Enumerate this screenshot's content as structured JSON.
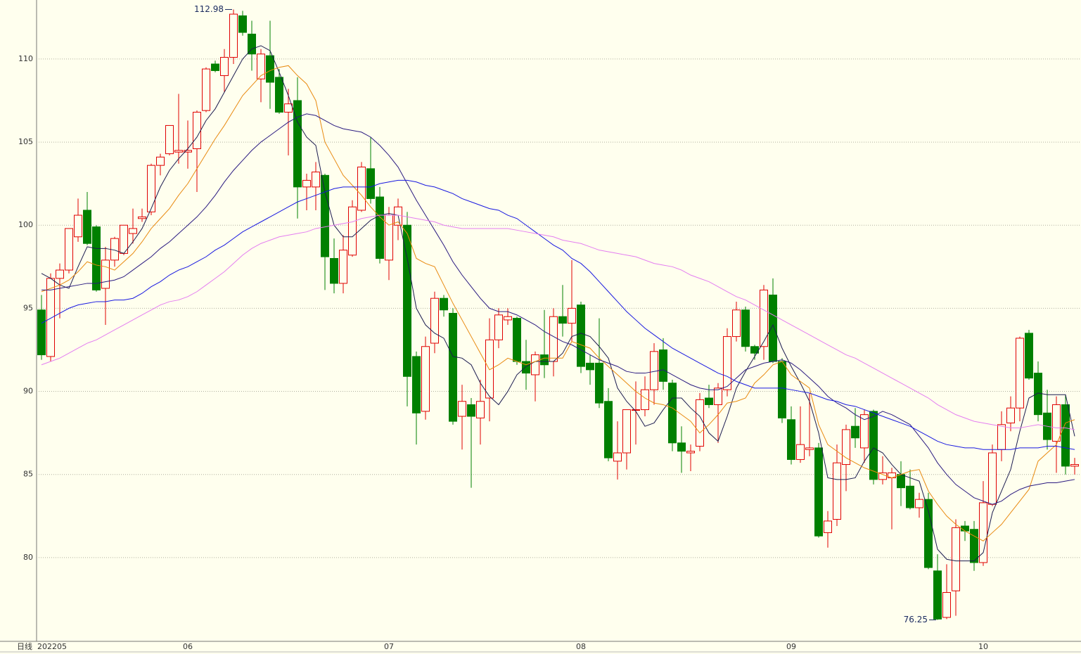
{
  "chart_data": {
    "type": "candlestick",
    "period_label": "日线",
    "categories": [
      "202205",
      null,
      null,
      null,
      null,
      null,
      null,
      null,
      null,
      null,
      null,
      null,
      null,
      null,
      null,
      null,
      "06",
      null,
      null,
      null,
      null,
      null,
      null,
      null,
      null,
      null,
      null,
      null,
      null,
      null,
      null,
      null,
      null,
      null,
      null,
      null,
      null,
      null,
      "07",
      null,
      null,
      null,
      null,
      null,
      null,
      null,
      null,
      null,
      null,
      null,
      null,
      null,
      null,
      null,
      null,
      null,
      null,
      null,
      null,
      "08",
      null,
      null,
      null,
      null,
      null,
      null,
      null,
      null,
      null,
      null,
      null,
      null,
      null,
      null,
      null,
      null,
      null,
      null,
      null,
      null,
      null,
      null,
      "09",
      null,
      null,
      null,
      null,
      null,
      null,
      null,
      null,
      null,
      null,
      null,
      null,
      null,
      null,
      null,
      null,
      null,
      null,
      null,
      null,
      "10",
      null,
      null,
      null,
      null,
      null,
      null,
      null,
      null,
      null,
      null
    ],
    "open": [
      94.9,
      92.1,
      96.8,
      97.3,
      99.3,
      100.9,
      99.9,
      96.2,
      97.9,
      98.3,
      99.5,
      100.4,
      100.8,
      103.6,
      104.3,
      104.4,
      104.4,
      104.6,
      106.9,
      109.7,
      109.0,
      110.1,
      112.6,
      111.5,
      108.8,
      110.2,
      108.9,
      106.8,
      107.5,
      102.3,
      102.3,
      103.0,
      98.0,
      96.5,
      98.2,
      100.9,
      103.4,
      101.7,
      97.9,
      100.0,
      100.0,
      92.1,
      88.8,
      92.9,
      95.6,
      94.7,
      88.5,
      89.2,
      88.4,
      89.6,
      93.1,
      94.3,
      94.4,
      91.8,
      91.0,
      92.2,
      91.8,
      94.5,
      94.1,
      95.2,
      91.7,
      91.7,
      89.4,
      85.8,
      86.3,
      88.9,
      88.9,
      90.1,
      92.5,
      90.5,
      86.9,
      86.3,
      86.7,
      89.6,
      89.2,
      90.1,
      93.3,
      94.9,
      92.7,
      92.7,
      95.8,
      91.8,
      88.3,
      85.9,
      86.5,
      86.6,
      81.5,
      82.3,
      85.6,
      87.9,
      86.6,
      88.8,
      84.7,
      84.8,
      85.0,
      84.3,
      83.0,
      83.5,
      79.2,
      76.4,
      78.0,
      81.9,
      81.7,
      79.7,
      83.2,
      86.5,
      88.1,
      89.0,
      93.5,
      91.1,
      88.7,
      87.0,
      89.2,
      85.5
    ],
    "high": [
      95.8,
      97.1,
      97.7,
      99.8,
      101.6,
      102.0,
      100.0,
      98.7,
      99.3,
      100.0,
      101.0,
      101.0,
      103.7,
      104.3,
      106.0,
      107.9,
      106.3,
      106.9,
      109.5,
      109.9,
      110.6,
      112.98,
      112.9,
      112.3,
      110.6,
      112.3,
      109.4,
      108.2,
      108.9,
      103.1,
      103.8,
      103.1,
      99.2,
      99.4,
      101.5,
      103.8,
      105.3,
      102.3,
      101.1,
      101.6,
      100.8,
      92.4,
      93.3,
      96.0,
      95.8,
      95.0,
      90.4,
      89.6,
      90.7,
      94.4,
      95.0,
      95.0,
      94.5,
      93.1,
      92.4,
      94.9,
      95.0,
      96.4,
      97.9,
      95.4,
      92.2,
      94.4,
      90.2,
      88.2,
      88.9,
      90.6,
      90.9,
      92.9,
      93.2,
      90.7,
      87.9,
      86.8,
      89.9,
      90.4,
      90.5,
      93.8,
      95.4,
      95.1,
      92.8,
      96.4,
      96.8,
      92.0,
      89.1,
      89.1,
      89.9,
      86.9,
      82.8,
      86.8,
      88.0,
      89.0,
      88.9,
      88.9,
      86.1,
      85.4,
      85.8,
      85.3,
      83.9,
      83.9,
      80.2,
      79.6,
      82.3,
      82.2,
      82.2,
      84.6,
      86.8,
      88.8,
      89.7,
      93.3,
      93.7,
      91.8,
      90.1,
      89.7,
      89.8,
      86.0
    ],
    "low": [
      91.9,
      91.8,
      94.4,
      97.1,
      99.0,
      98.8,
      96.0,
      94.0,
      97.5,
      98.2,
      98.9,
      100.2,
      100.6,
      103.0,
      104.2,
      103.7,
      103.4,
      102.0,
      106.8,
      109.2,
      108.0,
      109.7,
      111.4,
      109.3,
      107.4,
      107.0,
      106.7,
      104.2,
      100.4,
      100.9,
      100.9,
      96.1,
      95.9,
      95.9,
      98.1,
      100.8,
      101.3,
      97.7,
      96.7,
      99.1,
      89.1,
      86.8,
      88.3,
      92.3,
      94.5,
      88.0,
      86.5,
      84.2,
      86.8,
      88.2,
      92.6,
      94.0,
      91.6,
      90.1,
      89.4,
      90.8,
      90.9,
      93.3,
      93.0,
      91.1,
      90.4,
      89.0,
      85.8,
      84.7,
      85.3,
      86.8,
      88.5,
      89.2,
      90.1,
      86.4,
      85.1,
      85.2,
      86.4,
      89.0,
      86.9,
      89.7,
      93.0,
      92.4,
      91.9,
      91.9,
      91.7,
      88.1,
      85.6,
      85.7,
      86.1,
      81.2,
      80.6,
      81.9,
      84.0,
      86.6,
      85.7,
      84.4,
      84.4,
      81.7,
      83.1,
      82.9,
      82.4,
      79.3,
      76.25,
      76.3,
      76.5,
      81.0,
      79.2,
      79.5,
      83.1,
      85.8,
      87.6,
      88.2,
      90.7,
      88.2,
      86.5,
      85.1,
      85.0,
      85.0
    ],
    "close": [
      92.2,
      96.8,
      97.3,
      99.8,
      100.6,
      98.9,
      96.1,
      97.9,
      99.2,
      100.0,
      99.8,
      100.5,
      103.6,
      104.1,
      106.0,
      104.5,
      104.5,
      106.8,
      109.4,
      109.3,
      110.1,
      112.7,
      111.6,
      110.3,
      110.3,
      108.6,
      106.8,
      107.3,
      102.3,
      102.7,
      103.2,
      98.1,
      96.5,
      98.5,
      101.1,
      103.5,
      101.6,
      98.0,
      100.6,
      101.1,
      90.9,
      88.7,
      92.7,
      95.6,
      94.9,
      88.2,
      89.4,
      88.5,
      89.4,
      93.1,
      94.6,
      94.5,
      91.8,
      91.1,
      92.2,
      91.6,
      94.5,
      94.1,
      95.0,
      91.5,
      91.3,
      89.3,
      86.0,
      86.3,
      88.9,
      88.9,
      90.1,
      92.4,
      90.6,
      86.9,
      86.4,
      86.4,
      89.5,
      89.2,
      90.2,
      93.3,
      94.9,
      92.7,
      92.3,
      96.1,
      91.8,
      88.4,
      85.9,
      86.8,
      86.6,
      81.3,
      82.2,
      85.7,
      87.7,
      87.2,
      88.6,
      84.7,
      85.1,
      85.1,
      84.2,
      83.0,
      83.5,
      79.4,
      76.3,
      77.9,
      81.8,
      81.6,
      79.7,
      83.3,
      86.3,
      88.0,
      89.0,
      93.2,
      90.8,
      88.6,
      87.1,
      89.2,
      85.5,
      85.6
    ],
    "up_color": "#e00000",
    "down_color": "#008000",
    "lines": [
      {
        "color": "#1c1c50",
        "values": [
          97.1,
          96.8,
          96.4,
          96.2,
          97.5,
          98.7,
          98.6,
          98.6,
          98.5,
          98.3,
          99.0,
          99.8,
          101.0,
          102.3,
          103.3,
          104.0,
          104.6,
          105.3,
          106.3,
          107.0,
          108.0,
          109.0,
          110.0,
          110.6,
          110.8,
          110.5,
          109.2,
          107.8,
          106.2,
          105.3,
          104.8,
          102.0,
          100.0,
          99.3,
          99.3,
          99.8,
          100.3,
          100.6,
          100.7,
          100.6,
          98.0,
          95.0,
          94.0,
          93.5,
          93.2,
          92.1,
          92.0,
          91.6,
          90.5,
          89.7,
          89.2,
          90.0,
          91.0,
          91.5,
          91.8,
          91.8,
          91.8,
          92.3,
          93.3,
          93.5,
          93.3,
          92.7,
          92.0,
          90.2,
          89.4,
          88.8,
          87.9,
          88.1,
          88.9,
          89.6,
          89.6,
          89.0,
          88.5,
          87.5,
          87.0,
          88.5,
          90.2,
          91.2,
          92.1,
          93.0,
          94.0,
          92.6,
          91.5,
          90.5,
          89.4,
          87.5,
          84.8,
          84.7,
          84.7,
          84.8,
          85.8,
          86.6,
          86.3,
          85.6,
          85.0,
          84.8,
          84.6,
          82.8,
          80.5,
          79.9,
          79.8,
          79.8,
          79.8,
          80.3,
          82.7,
          84.0,
          85.3,
          87.6,
          89.6,
          89.9,
          89.8,
          89.8,
          89.8,
          87.3
        ]
      },
      {
        "color": "#e88a10",
        "values": [
          96.0,
          96.2,
          96.4,
          96.7,
          97.2,
          97.8,
          97.6,
          97.5,
          97.3,
          97.8,
          98.3,
          99.0,
          99.8,
          100.4,
          101.0,
          101.8,
          102.5,
          103.4,
          104.3,
          105.2,
          106.0,
          106.9,
          107.8,
          108.4,
          109.0,
          109.3,
          109.5,
          109.6,
          109.0,
          108.5,
          107.5,
          105.0,
          104.0,
          103.0,
          102.4,
          101.8,
          101.1,
          100.5,
          100.0,
          100.2,
          99.5,
          98.0,
          97.7,
          97.5,
          96.4,
          95.3,
          94.3,
          93.3,
          92.3,
          91.3,
          91.6,
          92.0,
          91.8,
          91.6,
          91.8,
          92.0,
          92.0,
          92.0,
          93.0,
          92.8,
          92.6,
          92.0,
          91.5,
          91.0,
          90.5,
          90.0,
          89.6,
          89.3,
          89.2,
          89.0,
          88.6,
          88.2,
          87.5,
          88.0,
          88.6,
          89.3,
          89.4,
          89.6,
          90.5,
          91.0,
          91.6,
          91.8,
          91.0,
          90.6,
          90.2,
          88.0,
          86.8,
          86.4,
          86.0,
          85.7,
          85.4,
          85.2,
          85.0,
          84.8,
          85.0,
          85.2,
          85.3,
          84.0,
          83.2,
          82.5,
          82.0,
          81.6,
          81.3,
          81.0,
          81.5,
          82.0,
          82.7,
          83.4,
          84.1,
          85.8,
          86.3,
          86.8,
          88.1,
          88.3
        ]
      },
      {
        "color": "#2a1a80",
        "values": [
          96.1,
          96.1,
          96.2,
          96.3,
          96.4,
          96.5,
          96.5,
          96.6,
          96.7,
          96.9,
          97.3,
          97.7,
          98.1,
          98.6,
          99.0,
          99.5,
          100.0,
          100.5,
          101.1,
          101.8,
          102.6,
          103.3,
          103.9,
          104.5,
          105.0,
          105.4,
          105.8,
          106.2,
          106.5,
          106.7,
          106.6,
          106.3,
          106.0,
          105.8,
          105.7,
          105.6,
          105.3,
          104.8,
          104.2,
          103.5,
          102.5,
          101.5,
          100.6,
          99.7,
          98.8,
          97.8,
          97.0,
          96.3,
          95.6,
          95.0,
          94.8,
          94.8,
          94.6,
          94.3,
          94.0,
          93.6,
          93.3,
          93.0,
          92.8,
          92.5,
          92.2,
          91.9,
          91.7,
          91.5,
          91.2,
          91.1,
          91.1,
          91.2,
          91.3,
          91.0,
          90.7,
          90.4,
          90.2,
          90.1,
          90.1,
          90.3,
          90.8,
          91.3,
          91.5,
          91.7,
          91.8,
          91.9,
          91.7,
          91.3,
          90.8,
          90.3,
          89.7,
          89.3,
          89.0,
          88.6,
          88.3,
          88.5,
          88.8,
          88.6,
          88.3,
          88.0,
          87.3,
          86.6,
          85.7,
          85.0,
          84.4,
          84.0,
          83.6,
          83.4,
          83.2,
          83.4,
          83.8,
          84.1,
          84.3,
          84.4,
          84.5,
          84.5,
          84.6,
          84.7
        ]
      },
      {
        "color": "#1818e0",
        "values": [
          94.1,
          94.4,
          94.7,
          95.0,
          95.2,
          95.3,
          95.4,
          95.4,
          95.5,
          95.5,
          95.6,
          95.9,
          96.3,
          96.6,
          97.0,
          97.3,
          97.5,
          97.8,
          98.1,
          98.5,
          98.8,
          99.2,
          99.6,
          99.9,
          100.2,
          100.5,
          100.8,
          101.1,
          101.4,
          101.6,
          101.8,
          102.0,
          102.2,
          102.3,
          102.3,
          102.3,
          102.3,
          102.5,
          102.6,
          102.7,
          102.7,
          102.6,
          102.4,
          102.3,
          102.1,
          101.9,
          101.6,
          101.4,
          101.2,
          101.0,
          100.9,
          100.6,
          100.4,
          100.0,
          99.6,
          99.2,
          98.8,
          98.5,
          98.0,
          97.7,
          97.2,
          96.6,
          96.0,
          95.4,
          94.8,
          94.3,
          93.8,
          93.4,
          93.0,
          92.6,
          92.3,
          92.0,
          91.7,
          91.4,
          91.1,
          90.9,
          90.6,
          90.4,
          90.2,
          90.2,
          90.2,
          90.2,
          90.1,
          90.0,
          89.9,
          89.7,
          89.5,
          89.4,
          89.2,
          89.1,
          88.9,
          88.7,
          88.5,
          88.3,
          88.1,
          87.9,
          87.6,
          87.3,
          87.0,
          86.8,
          86.7,
          86.6,
          86.6,
          86.5,
          86.5,
          86.5,
          86.5,
          86.6,
          86.6,
          86.6,
          86.7,
          86.7,
          86.6,
          86.5
        ]
      },
      {
        "color": "#e47ef0",
        "values": [
          91.6,
          91.8,
          92.0,
          92.3,
          92.6,
          92.9,
          93.1,
          93.4,
          93.7,
          94.0,
          94.3,
          94.6,
          94.9,
          95.2,
          95.4,
          95.5,
          95.7,
          96.0,
          96.4,
          96.8,
          97.2,
          97.7,
          98.2,
          98.6,
          98.9,
          99.1,
          99.3,
          99.4,
          99.5,
          99.6,
          99.8,
          99.9,
          100.0,
          100.1,
          100.2,
          100.4,
          100.5,
          100.6,
          100.6,
          100.6,
          100.5,
          100.4,
          100.3,
          100.2,
          100.0,
          99.9,
          99.8,
          99.8,
          99.8,
          99.8,
          99.8,
          99.8,
          99.7,
          99.6,
          99.5,
          99.4,
          99.3,
          99.1,
          99.0,
          98.9,
          98.7,
          98.5,
          98.4,
          98.3,
          98.2,
          98.1,
          97.9,
          97.7,
          97.6,
          97.5,
          97.3,
          97.0,
          96.8,
          96.6,
          96.3,
          96.0,
          95.7,
          95.5,
          95.2,
          94.9,
          94.6,
          94.3,
          94.0,
          93.7,
          93.4,
          93.1,
          92.8,
          92.5,
          92.2,
          92.0,
          91.7,
          91.4,
          91.1,
          90.8,
          90.5,
          90.2,
          89.9,
          89.6,
          89.2,
          88.9,
          88.6,
          88.4,
          88.2,
          88.1,
          88.0,
          87.9,
          87.8,
          87.8,
          87.9,
          88.0,
          87.9,
          87.8,
          87.8,
          87.7
        ]
      }
    ],
    "high_mark": 112.98,
    "low_mark": 76.25,
    "ylim": [
      74.96,
      113.55
    ],
    "yticks": [
      80,
      85,
      90,
      95,
      100,
      105,
      110
    ],
    "grid": true
  }
}
